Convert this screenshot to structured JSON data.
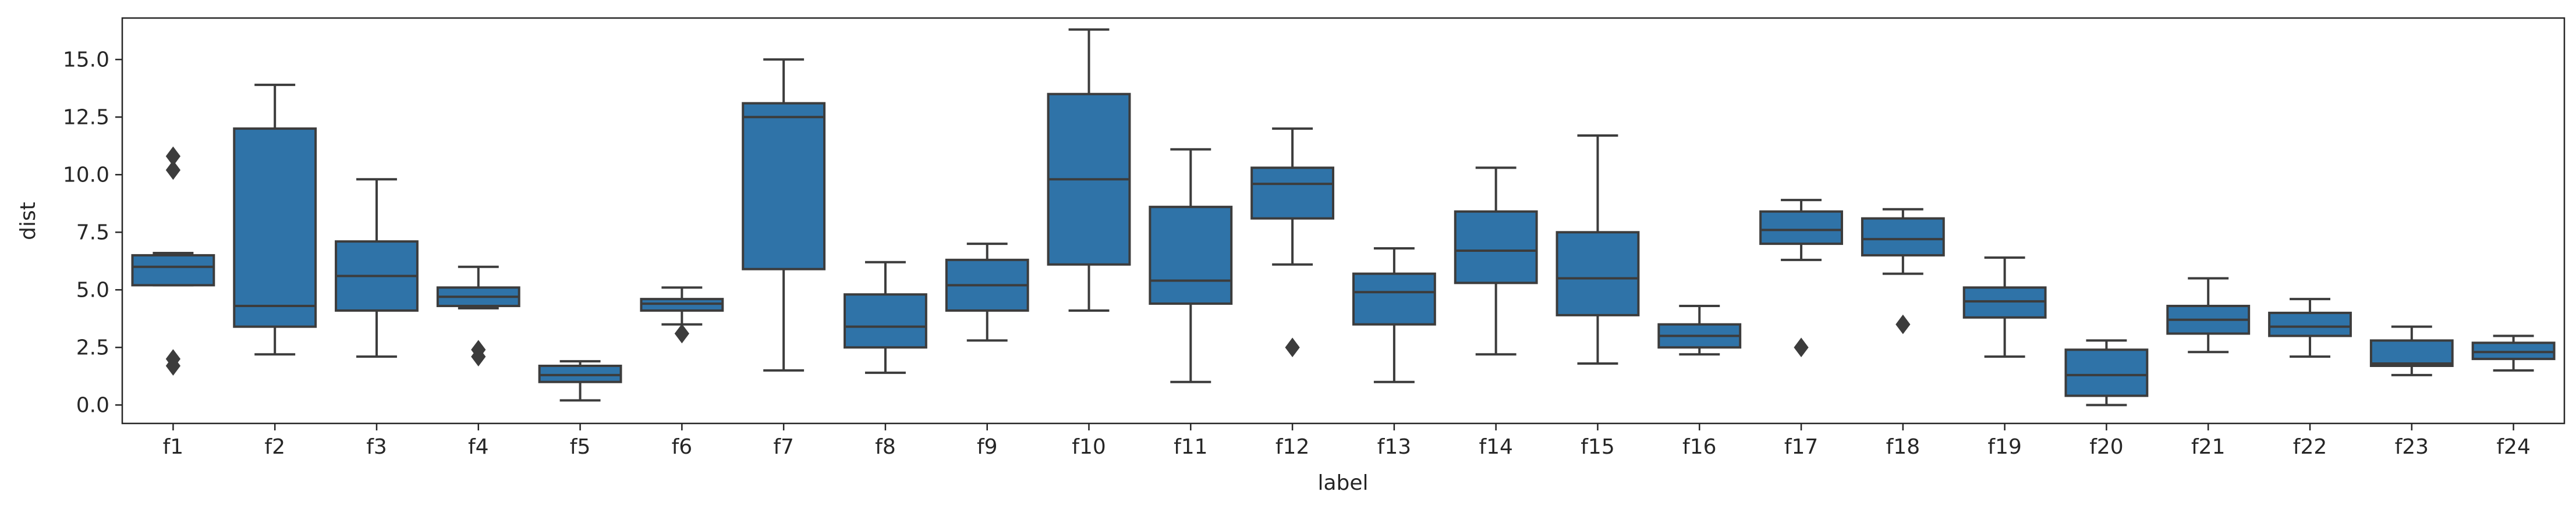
{
  "chart_data": {
    "type": "box",
    "xlabel": "label",
    "ylabel": "dist",
    "ylim": [
      -0.8,
      16.8
    ],
    "yticks": [
      "0.0",
      "2.5",
      "5.0",
      "7.5",
      "10.0",
      "12.5",
      "15.0"
    ],
    "grid": false,
    "legend": "none",
    "box_color": "#2f73a8",
    "line_color": "#3c3c3c",
    "categories": [
      "f1",
      "f2",
      "f3",
      "f4",
      "f5",
      "f6",
      "f7",
      "f8",
      "f9",
      "f10",
      "f11",
      "f12",
      "f13",
      "f14",
      "f15",
      "f16",
      "f17",
      "f18",
      "f19",
      "f20",
      "f21",
      "f22",
      "f23",
      "f24"
    ],
    "boxes": [
      {
        "label": "f1",
        "whislo": 5.2,
        "q1": 5.2,
        "med": 6.0,
        "q3": 6.5,
        "whishi": 6.6,
        "fliers": [
          10.8,
          10.2,
          2.0,
          1.7
        ]
      },
      {
        "label": "f2",
        "whislo": 2.2,
        "q1": 3.4,
        "med": 4.3,
        "q3": 12.0,
        "whishi": 13.9,
        "fliers": []
      },
      {
        "label": "f3",
        "whislo": 2.1,
        "q1": 4.1,
        "med": 5.6,
        "q3": 7.1,
        "whishi": 9.8,
        "fliers": []
      },
      {
        "label": "f4",
        "whislo": 4.2,
        "q1": 4.3,
        "med": 4.7,
        "q3": 5.1,
        "whishi": 6.0,
        "fliers": [
          2.4,
          2.1
        ]
      },
      {
        "label": "f5",
        "whislo": 0.2,
        "q1": 1.0,
        "med": 1.3,
        "q3": 1.7,
        "whishi": 1.9,
        "fliers": []
      },
      {
        "label": "f6",
        "whislo": 3.5,
        "q1": 4.1,
        "med": 4.4,
        "q3": 4.6,
        "whishi": 5.1,
        "fliers": [
          3.1
        ]
      },
      {
        "label": "f7",
        "whislo": 1.5,
        "q1": 5.9,
        "med": 12.5,
        "q3": 13.1,
        "whishi": 15.0,
        "fliers": []
      },
      {
        "label": "f8",
        "whislo": 1.4,
        "q1": 2.5,
        "med": 3.4,
        "q3": 4.8,
        "whishi": 6.2,
        "fliers": []
      },
      {
        "label": "f9",
        "whislo": 2.8,
        "q1": 4.1,
        "med": 5.2,
        "q3": 6.3,
        "whishi": 7.0,
        "fliers": []
      },
      {
        "label": "f10",
        "whislo": 4.1,
        "q1": 6.1,
        "med": 9.8,
        "q3": 13.5,
        "whishi": 16.3,
        "fliers": []
      },
      {
        "label": "f11",
        "whislo": 1.0,
        "q1": 4.4,
        "med": 5.4,
        "q3": 8.6,
        "whishi": 11.1,
        "fliers": []
      },
      {
        "label": "f12",
        "whislo": 6.1,
        "q1": 8.1,
        "med": 9.6,
        "q3": 10.3,
        "whishi": 12.0,
        "fliers": [
          2.5
        ]
      },
      {
        "label": "f13",
        "whislo": 1.0,
        "q1": 3.5,
        "med": 4.9,
        "q3": 5.7,
        "whishi": 6.8,
        "fliers": []
      },
      {
        "label": "f14",
        "whislo": 2.2,
        "q1": 5.3,
        "med": 6.7,
        "q3": 8.4,
        "whishi": 10.3,
        "fliers": []
      },
      {
        "label": "f15",
        "whislo": 1.8,
        "q1": 3.9,
        "med": 5.5,
        "q3": 7.5,
        "whishi": 11.7,
        "fliers": []
      },
      {
        "label": "f16",
        "whislo": 2.2,
        "q1": 2.5,
        "med": 3.0,
        "q3": 3.5,
        "whishi": 4.3,
        "fliers": []
      },
      {
        "label": "f17",
        "whislo": 6.3,
        "q1": 7.0,
        "med": 7.6,
        "q3": 8.4,
        "whishi": 8.9,
        "fliers": [
          2.5
        ]
      },
      {
        "label": "f18",
        "whislo": 5.7,
        "q1": 6.5,
        "med": 7.2,
        "q3": 8.1,
        "whishi": 8.5,
        "fliers": [
          3.5
        ]
      },
      {
        "label": "f19",
        "whislo": 2.1,
        "q1": 3.8,
        "med": 4.5,
        "q3": 5.1,
        "whishi": 6.4,
        "fliers": []
      },
      {
        "label": "f20",
        "whislo": 0.0,
        "q1": 0.4,
        "med": 1.3,
        "q3": 2.4,
        "whishi": 2.8,
        "fliers": []
      },
      {
        "label": "f21",
        "whislo": 2.3,
        "q1": 3.1,
        "med": 3.7,
        "q3": 4.3,
        "whishi": 5.5,
        "fliers": []
      },
      {
        "label": "f22",
        "whislo": 2.1,
        "q1": 3.0,
        "med": 3.4,
        "q3": 4.0,
        "whishi": 4.6,
        "fliers": []
      },
      {
        "label": "f23",
        "whislo": 1.3,
        "q1": 1.7,
        "med": 1.8,
        "q3": 2.8,
        "whishi": 3.4,
        "fliers": []
      },
      {
        "label": "f24",
        "whislo": 1.5,
        "q1": 2.0,
        "med": 2.3,
        "q3": 2.7,
        "whishi": 3.0,
        "fliers": []
      }
    ]
  }
}
